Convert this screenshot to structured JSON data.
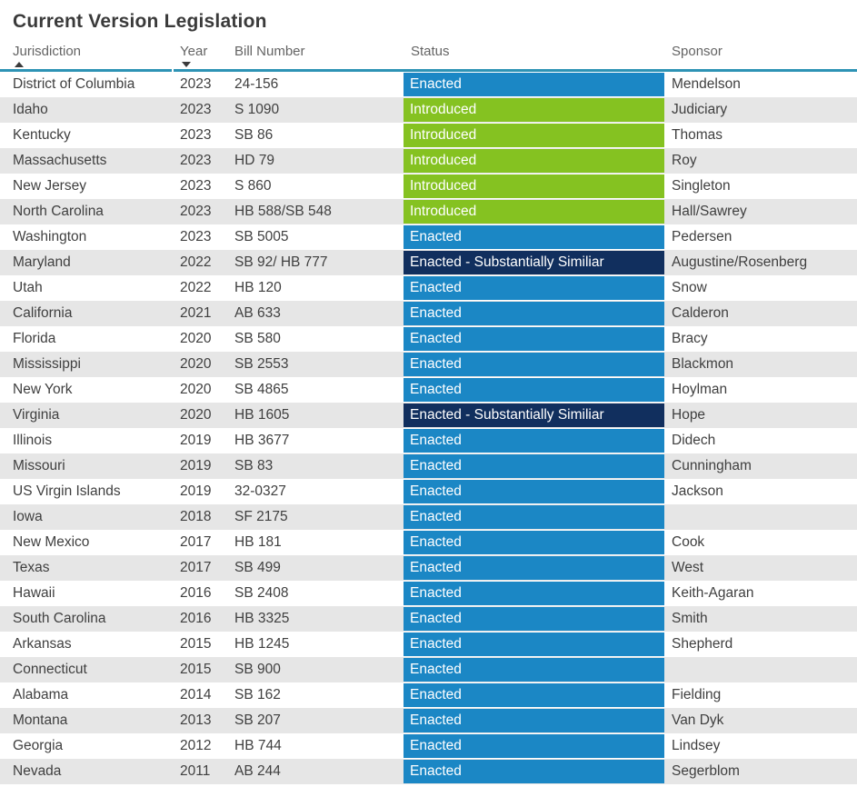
{
  "title": "Current Version Legislation",
  "colors": {
    "header_line": "#2e93b5",
    "row_alt": "#e6e6e6",
    "status_enacted": "#1b87c5",
    "status_introduced": "#85c221",
    "status_enacted_similar": "#112f5e"
  },
  "status_colors": {
    "Enacted": "#1b87c5",
    "Introduced": "#85c221",
    "Enacted - Substantially Similiar": "#112f5e"
  },
  "table": {
    "columns": [
      {
        "key": "jurisdiction",
        "label": "Jurisdiction",
        "sort": "asc"
      },
      {
        "key": "year",
        "label": "Year",
        "sort": "desc"
      },
      {
        "key": "bill",
        "label": "Bill Number",
        "sort": ""
      },
      {
        "key": "status",
        "label": "Status",
        "sort": ""
      },
      {
        "key": "sponsor",
        "label": "Sponsor",
        "sort": ""
      }
    ],
    "rows": [
      {
        "jurisdiction": "District of Columbia",
        "year": "2023",
        "bill": "24-156",
        "status": "Enacted",
        "sponsor": "Mendelson"
      },
      {
        "jurisdiction": "Idaho",
        "year": "2023",
        "bill": "S 1090",
        "status": "Introduced",
        "sponsor": "Judiciary"
      },
      {
        "jurisdiction": "Kentucky",
        "year": "2023",
        "bill": "SB 86",
        "status": "Introduced",
        "sponsor": "Thomas"
      },
      {
        "jurisdiction": "Massachusetts",
        "year": "2023",
        "bill": "HD 79",
        "status": "Introduced",
        "sponsor": "Roy"
      },
      {
        "jurisdiction": "New Jersey",
        "year": "2023",
        "bill": "S 860",
        "status": "Introduced",
        "sponsor": "Singleton"
      },
      {
        "jurisdiction": "North Carolina",
        "year": "2023",
        "bill": "HB 588/SB 548",
        "status": "Introduced",
        "sponsor": "Hall/Sawrey"
      },
      {
        "jurisdiction": "Washington",
        "year": "2023",
        "bill": "SB 5005",
        "status": "Enacted",
        "sponsor": "Pedersen"
      },
      {
        "jurisdiction": "Maryland",
        "year": "2022",
        "bill": "SB 92/ HB 777",
        "status": "Enacted - Substantially Similiar",
        "sponsor": "Augustine/Rosenberg"
      },
      {
        "jurisdiction": "Utah",
        "year": "2022",
        "bill": "HB 120",
        "status": "Enacted",
        "sponsor": "Snow"
      },
      {
        "jurisdiction": "California",
        "year": "2021",
        "bill": "AB 633",
        "status": "Enacted",
        "sponsor": "Calderon"
      },
      {
        "jurisdiction": "Florida",
        "year": "2020",
        "bill": "SB 580",
        "status": "Enacted",
        "sponsor": "Bracy"
      },
      {
        "jurisdiction": "Mississippi",
        "year": "2020",
        "bill": "SB 2553",
        "status": "Enacted",
        "sponsor": "Blackmon"
      },
      {
        "jurisdiction": "New York",
        "year": "2020",
        "bill": "SB 4865",
        "status": "Enacted",
        "sponsor": "Hoylman"
      },
      {
        "jurisdiction": "Virginia",
        "year": "2020",
        "bill": "HB 1605",
        "status": "Enacted - Substantially Similiar",
        "sponsor": "Hope"
      },
      {
        "jurisdiction": "Illinois",
        "year": "2019",
        "bill": "HB 3677",
        "status": "Enacted",
        "sponsor": "Didech"
      },
      {
        "jurisdiction": "Missouri",
        "year": "2019",
        "bill": "SB 83",
        "status": "Enacted",
        "sponsor": "Cunningham"
      },
      {
        "jurisdiction": "US Virgin Islands",
        "year": "2019",
        "bill": "32-0327",
        "status": "Enacted",
        "sponsor": "Jackson"
      },
      {
        "jurisdiction": "Iowa",
        "year": "2018",
        "bill": "SF 2175",
        "status": "Enacted",
        "sponsor": ""
      },
      {
        "jurisdiction": "New Mexico",
        "year": "2017",
        "bill": "HB 181",
        "status": "Enacted",
        "sponsor": "Cook"
      },
      {
        "jurisdiction": "Texas",
        "year": "2017",
        "bill": "SB 499",
        "status": "Enacted",
        "sponsor": "West"
      },
      {
        "jurisdiction": "Hawaii",
        "year": "2016",
        "bill": "SB 2408",
        "status": "Enacted",
        "sponsor": "Keith-Agaran"
      },
      {
        "jurisdiction": "South Carolina",
        "year": "2016",
        "bill": "HB 3325",
        "status": "Enacted",
        "sponsor": "Smith"
      },
      {
        "jurisdiction": "Arkansas",
        "year": "2015",
        "bill": "HB 1245",
        "status": "Enacted",
        "sponsor": "Shepherd"
      },
      {
        "jurisdiction": "Connecticut",
        "year": "2015",
        "bill": "SB 900",
        "status": "Enacted",
        "sponsor": ""
      },
      {
        "jurisdiction": "Alabama",
        "year": "2014",
        "bill": "SB 162",
        "status": "Enacted",
        "sponsor": "Fielding"
      },
      {
        "jurisdiction": "Montana",
        "year": "2013",
        "bill": "SB 207",
        "status": "Enacted",
        "sponsor": "Van Dyk"
      },
      {
        "jurisdiction": "Georgia",
        "year": "2012",
        "bill": "HB 744",
        "status": "Enacted",
        "sponsor": "Lindsey"
      },
      {
        "jurisdiction": "Nevada",
        "year": "2011",
        "bill": "AB 244",
        "status": "Enacted",
        "sponsor": "Segerblom"
      }
    ]
  }
}
